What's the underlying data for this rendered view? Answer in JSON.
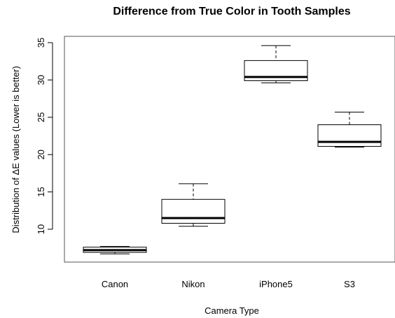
{
  "chart_data": {
    "type": "boxplot",
    "title": "Difference from True Color in Tooth Samples",
    "xlabel": "Camera Type",
    "ylabel": "Distribution of ΔE values (Lower is better)",
    "categories": [
      "Canon",
      "Nikon",
      "iPhone5",
      "S3"
    ],
    "boxes": [
      {
        "category": "Canon",
        "min": 6.7,
        "q1": 6.9,
        "median": 7.2,
        "q3": 7.6,
        "max": 7.7
      },
      {
        "category": "Nikon",
        "min": 10.4,
        "q1": 10.8,
        "median": 11.5,
        "q3": 14.0,
        "max": 16.1
      },
      {
        "category": "iPhone5",
        "min": 29.6,
        "q1": 29.9,
        "median": 30.4,
        "q3": 32.6,
        "max": 34.6
      },
      {
        "category": "S3",
        "min": 21.0,
        "q1": 21.1,
        "median": 21.7,
        "q3": 24.0,
        "max": 25.7
      }
    ],
    "yticks": [
      "10",
      "15",
      "20",
      "25",
      "30",
      "35"
    ],
    "ylim": [
      5,
      36
    ],
    "grid": false,
    "colors": {
      "box_fill": "#ffffff",
      "stroke": "#000000",
      "axis": "#555555"
    }
  }
}
